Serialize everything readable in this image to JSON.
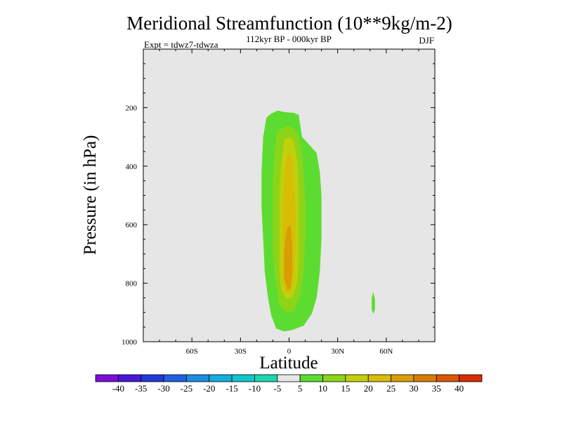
{
  "chart_data": {
    "type": "contour",
    "title": "Meridional Streamfunction (10**9kg/m-2)",
    "subtitle": "112kyr BP - 000kyr BP",
    "expt_label": "Expt = tdwz7-tdwza",
    "season": "DJF",
    "xlabel": "Latitude",
    "ylabel": "Pressure (in hPa)",
    "xlim": [
      -90,
      90
    ],
    "ylim": [
      1000,
      0
    ],
    "x_ticks": [
      {
        "value": -60,
        "label": "60S"
      },
      {
        "value": -30,
        "label": "30S"
      },
      {
        "value": 0,
        "label": "0"
      },
      {
        "value": 30,
        "label": "30N"
      },
      {
        "value": 60,
        "label": "60N"
      }
    ],
    "y_ticks": [
      {
        "value": 200,
        "label": "200"
      },
      {
        "value": 400,
        "label": "400"
      },
      {
        "value": 600,
        "label": "600"
      },
      {
        "value": 800,
        "label": "800"
      },
      {
        "value": 1000,
        "label": "1000"
      }
    ],
    "background_color": "#e6e6e6",
    "colorbar": {
      "labels": [
        "-40",
        "-35",
        "-30",
        "-25",
        "-20",
        "-15",
        "-10",
        "-5",
        "5",
        "10",
        "15",
        "20",
        "25",
        "30",
        "35",
        "40"
      ],
      "colors": [
        "#7a0ed8",
        "#4a16d8",
        "#1e3ad8",
        "#2060e0",
        "#1c8ee0",
        "#12aedc",
        "#10c6cc",
        "#1cd6b0",
        "#e6e6e6",
        "#5cdc30",
        "#8cd418",
        "#c0d00c",
        "#d8bc06",
        "#d89c04",
        "#d87c04",
        "#d85804",
        "#d82c04"
      ]
    },
    "contours": [
      {
        "level": 5,
        "color": "#5cdc30",
        "points": [
          [
            -11,
            220
          ],
          [
            -7,
            210
          ],
          [
            -3,
            215
          ],
          [
            3,
            218
          ],
          [
            6,
            225
          ],
          [
            8,
            300
          ],
          [
            13,
            330
          ],
          [
            17,
            355
          ],
          [
            19,
            420
          ],
          [
            20,
            500
          ],
          [
            20,
            650
          ],
          [
            19,
            760
          ],
          [
            17,
            850
          ],
          [
            14,
            905
          ],
          [
            9,
            945
          ],
          [
            2,
            960
          ],
          [
            -3,
            965
          ],
          [
            -8,
            955
          ],
          [
            -11,
            910
          ],
          [
            -13,
            850
          ],
          [
            -15,
            760
          ],
          [
            -16,
            650
          ],
          [
            -17,
            540
          ],
          [
            -17,
            420
          ],
          [
            -16,
            300
          ],
          [
            -14,
            235
          ]
        ]
      },
      {
        "level": 10,
        "color": "#8cd418",
        "points": [
          [
            -6,
            275
          ],
          [
            -1,
            262
          ],
          [
            3,
            270
          ],
          [
            6,
            300
          ],
          [
            8,
            360
          ],
          [
            9,
            430
          ],
          [
            10,
            520
          ],
          [
            10,
            650
          ],
          [
            9,
            760
          ],
          [
            7,
            840
          ],
          [
            3,
            895
          ],
          [
            -2,
            900
          ],
          [
            -6,
            875
          ],
          [
            -8,
            800
          ],
          [
            -10,
            700
          ],
          [
            -10,
            580
          ],
          [
            -10,
            460
          ],
          [
            -9,
            350
          ],
          [
            -8,
            300
          ]
        ]
      },
      {
        "level": 15,
        "color": "#c0d00c",
        "points": [
          [
            -3,
            310
          ],
          [
            0,
            300
          ],
          [
            3,
            315
          ],
          [
            5,
            380
          ],
          [
            6,
            470
          ],
          [
            6,
            600
          ],
          [
            6,
            720
          ],
          [
            5,
            800
          ],
          [
            2,
            850
          ],
          [
            -2,
            852
          ],
          [
            -5,
            820
          ],
          [
            -6,
            740
          ],
          [
            -6,
            620
          ],
          [
            -6,
            500
          ],
          [
            -5,
            400
          ]
        ]
      },
      {
        "level": 20,
        "color": "#d8bc06",
        "points": [
          [
            -2,
            370
          ],
          [
            0,
            355
          ],
          [
            2,
            375
          ],
          [
            3,
            460
          ],
          [
            4,
            560
          ],
          [
            4,
            680
          ],
          [
            3,
            790
          ],
          [
            1,
            830
          ],
          [
            -2,
            830
          ],
          [
            -4,
            790
          ],
          [
            -4,
            680
          ],
          [
            -4,
            560
          ],
          [
            -3,
            450
          ]
        ]
      },
      {
        "level": 25,
        "color": "#d89c04",
        "points": [
          [
            -1,
            610
          ],
          [
            1,
            600
          ],
          [
            2,
            680
          ],
          [
            2,
            760
          ],
          [
            1,
            820
          ],
          [
            -1,
            822
          ],
          [
            -3,
            780
          ],
          [
            -3,
            700
          ],
          [
            -2,
            640
          ]
        ]
      },
      {
        "level": 5,
        "color": "#5cdc30",
        "points": [
          [
            52,
            830
          ],
          [
            53,
            855
          ],
          [
            53,
            890
          ],
          [
            52,
            905
          ],
          [
            51,
            890
          ],
          [
            51,
            850
          ]
        ]
      }
    ]
  }
}
